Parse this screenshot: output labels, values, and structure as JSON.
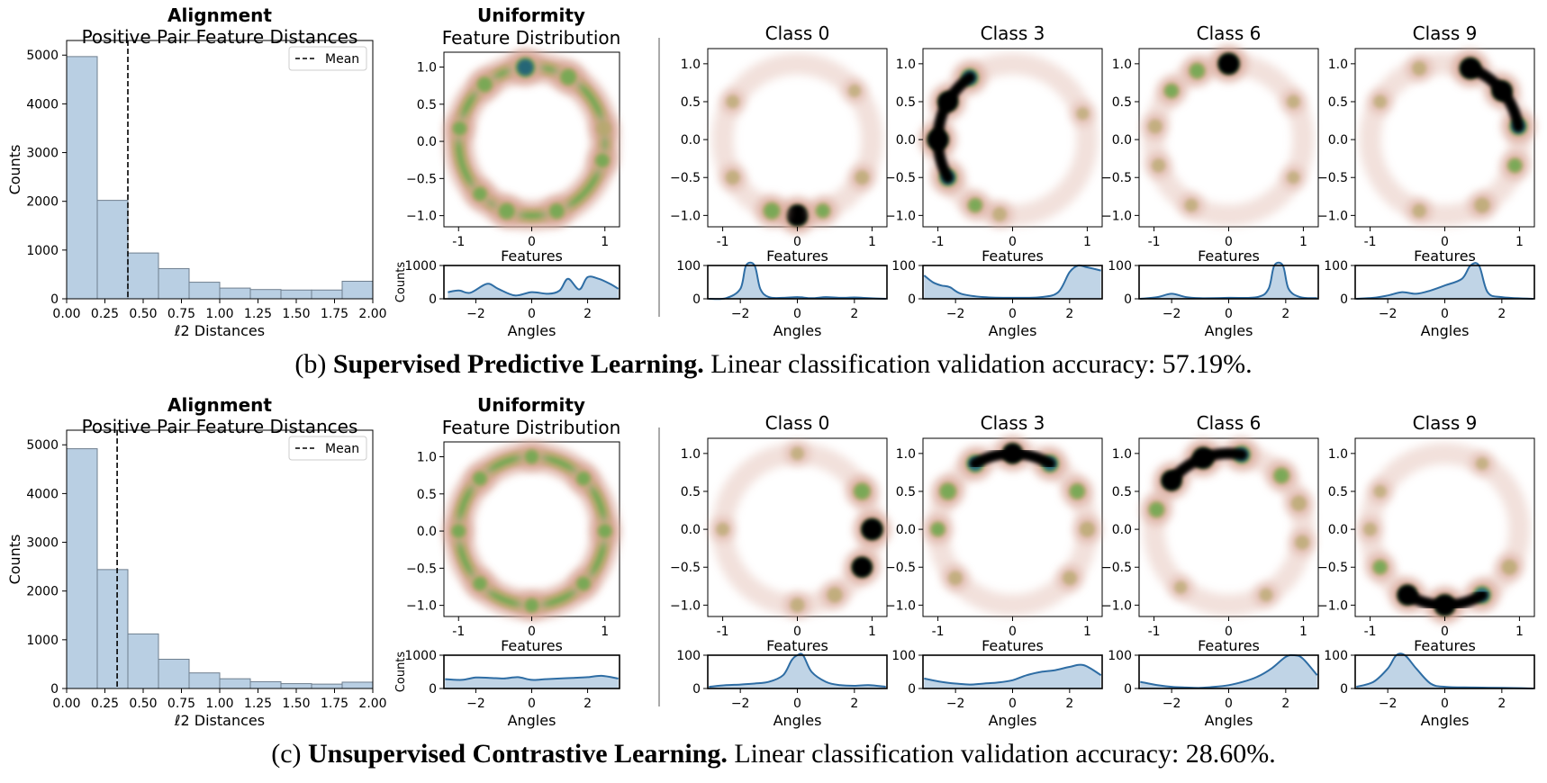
{
  "panels": [
    {
      "caption_prefix": "(b)",
      "caption_bold": "Supervised Predictive Learning.",
      "caption_rest": "Linear classification validation accuracy: 57.19%.",
      "align_title_bold": "Alignment",
      "align_title": "Positive Pair Feature Distances",
      "unif_title_bold": "Uniformity",
      "unif_title": "Feature Distribution"
    },
    {
      "caption_prefix": "(c)",
      "caption_bold": "Unsupervised Contrastive Learning.",
      "caption_rest": "Linear classification validation accuracy: 28.60%.",
      "align_title_bold": "Alignment",
      "align_title": "Positive Pair Feature Distances",
      "unif_title_bold": "Uniformity",
      "unif_title": "Feature Distribution"
    }
  ],
  "labels": {
    "hist_xlabel": "ℓ2 Distances",
    "hist_ylabel": "Counts",
    "legend_mean": "Mean",
    "features": "Features",
    "angles": "Angles",
    "counts": "Counts",
    "classes": [
      "Class 0",
      "Class 3",
      "Class 6",
      "Class 9"
    ]
  },
  "colors": {
    "hist_fill": "#b9cfe3",
    "hist_edge": "#6f7f8f",
    "kde_line": "#2e6da4",
    "ring_outer": "#d9a89a",
    "ring_mid": "#b5a86a",
    "ring_green": "#6aa84f",
    "ring_blue": "#1f5f7a",
    "ring_black": "#000000",
    "separator": "#aaaaaa"
  },
  "chart_data": [
    {
      "type": "bar",
      "title": "Positive Pair Feature Distances",
      "xlabel": "ℓ2 Distances",
      "ylabel": "Counts",
      "categories": [
        "0.00-0.20",
        "0.20-0.40",
        "0.40-0.60",
        "0.60-0.80",
        "0.80-1.00",
        "1.00-1.20",
        "1.20-1.40",
        "1.40-1.60",
        "1.60-1.80",
        "1.80-2.00"
      ],
      "values": [
        4970,
        2020,
        940,
        620,
        340,
        220,
        190,
        180,
        180,
        360
      ],
      "xlim": [
        0,
        2
      ],
      "ylim": [
        0,
        5300
      ],
      "mean": 0.4,
      "legend": "top-right"
    },
    {
      "type": "heatmap",
      "title": "Feature Distribution",
      "xlabel": "Features",
      "blobs_deg": [
        [
          95,
          1.0
        ],
        [
          60,
          0.7
        ],
        [
          130,
          0.6
        ],
        [
          170,
          0.5
        ],
        [
          225,
          0.5
        ],
        [
          250,
          0.7
        ],
        [
          290,
          0.6
        ],
        [
          345,
          0.5
        ],
        [
          10,
          0.4
        ]
      ],
      "hist_ylabel": "Counts",
      "hist_xlabel": "Angles",
      "hist_ylim": [
        0,
        1000
      ],
      "angle_density": [
        [
          -3,
          200
        ],
        [
          -2.6,
          250
        ],
        [
          -2.2,
          180
        ],
        [
          -1.6,
          450
        ],
        [
          -1.2,
          300
        ],
        [
          -0.6,
          100
        ],
        [
          0,
          200
        ],
        [
          0.6,
          150
        ],
        [
          1.0,
          250
        ],
        [
          1.3,
          600
        ],
        [
          1.7,
          280
        ],
        [
          2.0,
          650
        ],
        [
          2.4,
          600
        ],
        [
          2.8,
          450
        ],
        [
          3.1,
          300
        ]
      ]
    },
    {
      "type": "heatmap",
      "title": "Class 0",
      "blobs_deg": [
        [
          270,
          1.0
        ],
        [
          250,
          0.7
        ],
        [
          290,
          0.5
        ],
        [
          210,
          0.3
        ],
        [
          330,
          0.3
        ],
        [
          150,
          0.2
        ],
        [
          40,
          0.15
        ]
      ],
      "hist_xlabel": "Angles",
      "hist_ylim": [
        0,
        100
      ],
      "angle_density": [
        [
          -3.1,
          0
        ],
        [
          -2.5,
          2
        ],
        [
          -2.0,
          30
        ],
        [
          -1.8,
          100
        ],
        [
          -1.5,
          100
        ],
        [
          -1.3,
          30
        ],
        [
          -1.0,
          5
        ],
        [
          -0.5,
          3
        ],
        [
          0,
          5
        ],
        [
          0.5,
          2
        ],
        [
          1.0,
          5
        ],
        [
          1.5,
          3
        ],
        [
          2.0,
          4
        ],
        [
          2.5,
          2
        ],
        [
          3.1,
          0
        ]
      ]
    },
    {
      "type": "heatmap",
      "title": "Class 3",
      "blobs_deg": [
        [
          180,
          1.0
        ],
        [
          150,
          0.9
        ],
        [
          125,
          0.8
        ],
        [
          210,
          0.8
        ],
        [
          240,
          0.5
        ],
        [
          260,
          0.3
        ],
        [
          20,
          0.15
        ]
      ],
      "hist_xlabel": "Angles",
      "hist_ylim": [
        0,
        100
      ],
      "angle_density": [
        [
          -3.1,
          70
        ],
        [
          -2.8,
          50
        ],
        [
          -2.5,
          40
        ],
        [
          -2.2,
          35
        ],
        [
          -1.8,
          15
        ],
        [
          -1.0,
          5
        ],
        [
          0,
          3
        ],
        [
          1.0,
          5
        ],
        [
          1.6,
          20
        ],
        [
          2.0,
          80
        ],
        [
          2.3,
          100
        ],
        [
          2.6,
          95
        ],
        [
          3.1,
          85
        ]
      ]
    },
    {
      "type": "heatmap",
      "title": "Class 6",
      "blobs_deg": [
        [
          90,
          1.0
        ],
        [
          115,
          0.6
        ],
        [
          140,
          0.5
        ],
        [
          170,
          0.3
        ],
        [
          200,
          0.25
        ],
        [
          240,
          0.2
        ],
        [
          330,
          0.15
        ],
        [
          30,
          0.2
        ]
      ],
      "hist_xlabel": "Angles",
      "hist_ylim": [
        0,
        100
      ],
      "angle_density": [
        [
          -3.1,
          0
        ],
        [
          -2.5,
          5
        ],
        [
          -2.0,
          15
        ],
        [
          -1.5,
          5
        ],
        [
          -1.0,
          2
        ],
        [
          0,
          3
        ],
        [
          1.0,
          5
        ],
        [
          1.4,
          30
        ],
        [
          1.6,
          100
        ],
        [
          1.9,
          100
        ],
        [
          2.1,
          30
        ],
        [
          2.5,
          5
        ],
        [
          3.1,
          2
        ]
      ]
    },
    {
      "type": "heatmap",
      "title": "Class 9",
      "blobs_deg": [
        [
          70,
          1.0
        ],
        [
          40,
          0.9
        ],
        [
          10,
          0.8
        ],
        [
          340,
          0.5
        ],
        [
          300,
          0.4
        ],
        [
          250,
          0.25
        ],
        [
          110,
          0.3
        ],
        [
          150,
          0.2
        ]
      ],
      "hist_xlabel": "Angles",
      "hist_ylim": [
        0,
        100
      ],
      "angle_density": [
        [
          -3.1,
          0
        ],
        [
          -2.5,
          3
        ],
        [
          -2.0,
          10
        ],
        [
          -1.5,
          20
        ],
        [
          -1.0,
          15
        ],
        [
          -0.5,
          25
        ],
        [
          0,
          40
        ],
        [
          0.6,
          60
        ],
        [
          0.9,
          100
        ],
        [
          1.2,
          100
        ],
        [
          1.5,
          20
        ],
        [
          2.0,
          5
        ],
        [
          3.1,
          0
        ]
      ]
    },
    {
      "type": "bar",
      "title": "Positive Pair Feature Distances",
      "xlabel": "ℓ2 Distances",
      "ylabel": "Counts",
      "categories": [
        "0.00-0.20",
        "0.20-0.40",
        "0.40-0.60",
        "0.60-0.80",
        "0.80-1.00",
        "1.00-1.20",
        "1.20-1.40",
        "1.40-1.60",
        "1.60-1.80",
        "1.80-2.00"
      ],
      "values": [
        4920,
        2440,
        1120,
        600,
        320,
        200,
        140,
        100,
        90,
        130
      ],
      "xlim": [
        0,
        2
      ],
      "ylim": [
        0,
        5300
      ],
      "mean": 0.33,
      "legend": "top-right"
    },
    {
      "type": "heatmap",
      "title": "Feature Distribution",
      "xlabel": "Features",
      "blobs_deg": [
        [
          0,
          0.5
        ],
        [
          45,
          0.5
        ],
        [
          90,
          0.5
        ],
        [
          135,
          0.5
        ],
        [
          180,
          0.5
        ],
        [
          225,
          0.5
        ],
        [
          270,
          0.5
        ],
        [
          315,
          0.5
        ]
      ],
      "hist_ylabel": "Counts",
      "hist_xlabel": "Angles",
      "hist_ylim": [
        0,
        1000
      ],
      "angle_density": [
        [
          -3.1,
          280
        ],
        [
          -2.5,
          260
        ],
        [
          -2.0,
          330
        ],
        [
          -1.5,
          320
        ],
        [
          -1.0,
          300
        ],
        [
          -0.5,
          340
        ],
        [
          0,
          260
        ],
        [
          0.5,
          280
        ],
        [
          1.0,
          300
        ],
        [
          1.5,
          320
        ],
        [
          2.0,
          340
        ],
        [
          2.5,
          380
        ],
        [
          3.1,
          300
        ]
      ]
    },
    {
      "type": "heatmap",
      "title": "Class 0",
      "blobs_deg": [
        [
          0,
          1.0
        ],
        [
          330,
          0.9
        ],
        [
          30,
          0.7
        ],
        [
          300,
          0.4
        ],
        [
          270,
          0.3
        ],
        [
          180,
          0.2
        ],
        [
          90,
          0.2
        ]
      ],
      "hist_xlabel": "Angles",
      "hist_ylim": [
        0,
        100
      ],
      "angle_density": [
        [
          -3.1,
          5
        ],
        [
          -2.5,
          10
        ],
        [
          -2.0,
          12
        ],
        [
          -1.5,
          15
        ],
        [
          -1.0,
          20
        ],
        [
          -0.5,
          40
        ],
        [
          -0.2,
          85
        ],
        [
          0,
          100
        ],
        [
          0.2,
          100
        ],
        [
          0.5,
          50
        ],
        [
          1.0,
          20
        ],
        [
          1.5,
          10
        ],
        [
          2.0,
          8
        ],
        [
          2.5,
          10
        ],
        [
          3.1,
          5
        ]
      ]
    },
    {
      "type": "heatmap",
      "title": "Class 3",
      "blobs_deg": [
        [
          90,
          0.9
        ],
        [
          60,
          0.8
        ],
        [
          120,
          0.8
        ],
        [
          150,
          0.7
        ],
        [
          30,
          0.6
        ],
        [
          180,
          0.5
        ],
        [
          0,
          0.4
        ],
        [
          220,
          0.3
        ],
        [
          320,
          0.3
        ]
      ],
      "hist_xlabel": "Angles",
      "hist_ylim": [
        0,
        100
      ],
      "angle_density": [
        [
          -3.1,
          30
        ],
        [
          -2.5,
          20
        ],
        [
          -2.0,
          15
        ],
        [
          -1.5,
          12
        ],
        [
          -1.0,
          15
        ],
        [
          -0.5,
          18
        ],
        [
          0,
          25
        ],
        [
          0.5,
          40
        ],
        [
          1.0,
          50
        ],
        [
          1.5,
          55
        ],
        [
          2.0,
          65
        ],
        [
          2.5,
          70
        ],
        [
          3.1,
          40
        ]
      ]
    },
    {
      "type": "heatmap",
      "title": "Class 6",
      "blobs_deg": [
        [
          110,
          1.0
        ],
        [
          140,
          0.9
        ],
        [
          80,
          0.8
        ],
        [
          165,
          0.6
        ],
        [
          45,
          0.6
        ],
        [
          20,
          0.4
        ],
        [
          350,
          0.3
        ],
        [
          300,
          0.2
        ],
        [
          230,
          0.15
        ]
      ],
      "hist_xlabel": "Angles",
      "hist_ylim": [
        0,
        100
      ],
      "angle_density": [
        [
          -3.1,
          20
        ],
        [
          -2.5,
          10
        ],
        [
          -2.0,
          5
        ],
        [
          -1.5,
          3
        ],
        [
          -1.0,
          2
        ],
        [
          -0.5,
          5
        ],
        [
          0,
          10
        ],
        [
          0.5,
          20
        ],
        [
          1.0,
          35
        ],
        [
          1.5,
          60
        ],
        [
          2.0,
          95
        ],
        [
          2.3,
          100
        ],
        [
          2.6,
          90
        ],
        [
          3.1,
          40
        ]
      ]
    },
    {
      "type": "heatmap",
      "title": "Class 9",
      "blobs_deg": [
        [
          270,
          1.0
        ],
        [
          240,
          0.9
        ],
        [
          300,
          0.8
        ],
        [
          210,
          0.5
        ],
        [
          330,
          0.4
        ],
        [
          180,
          0.2
        ],
        [
          150,
          0.15
        ],
        [
          60,
          0.15
        ]
      ],
      "hist_xlabel": "Angles",
      "hist_ylim": [
        0,
        100
      ],
      "angle_density": [
        [
          -3.1,
          5
        ],
        [
          -2.5,
          20
        ],
        [
          -2.0,
          60
        ],
        [
          -1.7,
          100
        ],
        [
          -1.4,
          100
        ],
        [
          -1.0,
          60
        ],
        [
          -0.5,
          15
        ],
        [
          0,
          5
        ],
        [
          1.0,
          3
        ],
        [
          2.0,
          2
        ],
        [
          3.1,
          0
        ]
      ]
    }
  ]
}
